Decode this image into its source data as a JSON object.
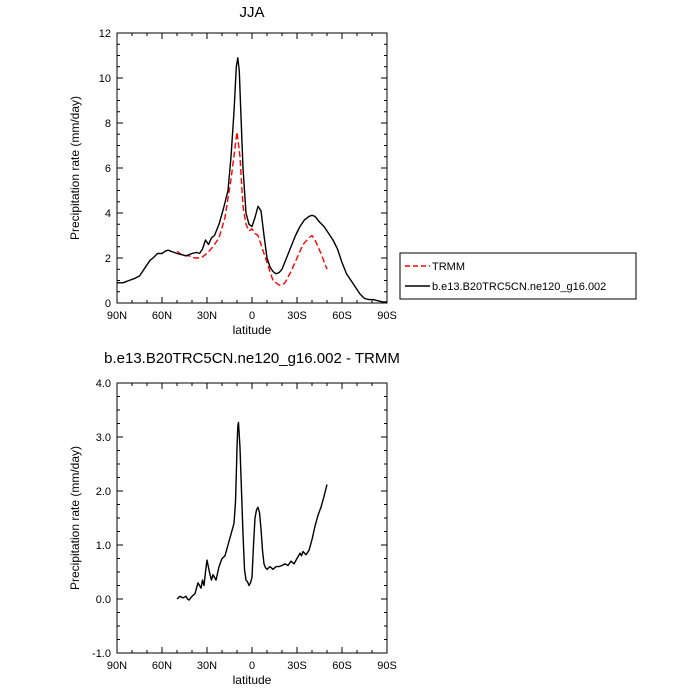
{
  "chart_data": [
    {
      "type": "line",
      "title": "JJA",
      "xlabel": "latitude",
      "ylabel": "Precipitation rate (mm/day)",
      "xlim": [
        90,
        -90
      ],
      "ylim": [
        0,
        12
      ],
      "xticks": [
        90,
        60,
        30,
        0,
        -30,
        -60,
        -90
      ],
      "xtick_labels": [
        "90N",
        "60N",
        "30N",
        "0",
        "30S",
        "60S",
        "90S"
      ],
      "yticks": [
        0,
        2,
        4,
        6,
        8,
        10,
        12
      ],
      "ytick_labels": [
        "0",
        "2",
        "4",
        "6",
        "8",
        "10",
        "12"
      ],
      "legend_position": "right",
      "series": [
        {
          "name": "TRMM",
          "color": "#ff0000",
          "style": "dashed",
          "x": [
            50,
            46,
            42,
            38,
            34,
            30,
            26,
            22,
            18,
            14,
            10,
            8,
            6,
            4,
            2,
            0,
            -2,
            -4,
            -6,
            -10,
            -14,
            -18,
            -20,
            -22,
            -26,
            -30,
            -34,
            -38,
            -40,
            -42,
            -46,
            -50
          ],
          "y": [
            2.3,
            2.1,
            2.1,
            2.0,
            2.0,
            2.2,
            2.5,
            2.9,
            3.8,
            5.5,
            7.6,
            6.5,
            4.3,
            3.5,
            3.2,
            3.3,
            3.1,
            3.0,
            2.6,
            1.8,
            1.0,
            0.8,
            0.8,
            0.9,
            1.4,
            2.0,
            2.6,
            2.9,
            3.0,
            2.8,
            2.2,
            1.5
          ]
        },
        {
          "name": "b.e13.B20TRC5CN.ne120_g16.002",
          "color": "#000000",
          "style": "solid",
          "x": [
            90,
            86,
            82,
            78,
            75,
            72,
            70,
            68,
            66,
            63,
            60,
            58,
            56,
            54,
            52,
            50,
            47,
            44,
            40,
            37,
            35,
            33,
            31,
            29,
            27,
            25,
            22,
            19,
            16,
            14,
            12,
            10.5,
            9.5,
            8.5,
            7.5,
            6,
            4,
            2,
            0,
            -2,
            -4,
            -6,
            -8,
            -10,
            -12,
            -14,
            -16,
            -18,
            -20,
            -23,
            -26,
            -29,
            -32,
            -35,
            -38,
            -40,
            -42,
            -45,
            -48,
            -51,
            -54,
            -57,
            -60,
            -63,
            -66,
            -69,
            -72,
            -75,
            -78,
            -81,
            -84,
            -87,
            -90
          ],
          "y": [
            0.9,
            0.9,
            1.0,
            1.1,
            1.2,
            1.5,
            1.7,
            1.9,
            2.0,
            2.2,
            2.2,
            2.3,
            2.35,
            2.3,
            2.25,
            2.2,
            2.15,
            2.1,
            2.2,
            2.25,
            2.2,
            2.4,
            2.8,
            2.6,
            2.9,
            3.0,
            3.5,
            4.2,
            5.0,
            6.5,
            8.5,
            10.5,
            10.9,
            10.3,
            8.5,
            6.0,
            4.0,
            3.5,
            3.4,
            3.8,
            4.3,
            4.1,
            3.0,
            2.0,
            1.6,
            1.4,
            1.3,
            1.35,
            1.5,
            2.0,
            2.5,
            3.0,
            3.4,
            3.7,
            3.85,
            3.9,
            3.85,
            3.6,
            3.4,
            3.1,
            2.8,
            2.4,
            1.8,
            1.3,
            1.0,
            0.7,
            0.4,
            0.2,
            0.15,
            0.15,
            0.1,
            0.05,
            0.05
          ]
        }
      ]
    },
    {
      "type": "line",
      "title": "b.e13.B20TRC5CN.ne120_g16.002 - TRMM",
      "xlabel": "latitude",
      "ylabel": "Precipitation rate (mm/day)",
      "xlim": [
        90,
        -90
      ],
      "ylim": [
        -1.0,
        4.0
      ],
      "xticks": [
        90,
        60,
        30,
        0,
        -30,
        -60,
        -90
      ],
      "xtick_labels": [
        "90N",
        "60N",
        "30N",
        "0",
        "30S",
        "60S",
        "90S"
      ],
      "yticks": [
        -1.0,
        0.0,
        1.0,
        2.0,
        3.0,
        4.0
      ],
      "ytick_labels": [
        "-1.0",
        "0.0",
        "1.0",
        "2.0",
        "3.0",
        "4.0"
      ],
      "series": [
        {
          "color": "#000000",
          "style": "solid",
          "x": [
            50,
            48,
            46,
            44,
            43,
            42,
            40,
            38,
            36,
            34,
            33,
            32,
            31,
            30,
            28,
            27,
            26,
            24,
            22,
            20,
            18,
            16,
            14,
            12,
            11,
            10.5,
            10,
            9.5,
            9,
            8,
            7,
            6,
            5,
            4,
            3,
            2,
            1,
            0,
            -1,
            -2,
            -3,
            -4,
            -5,
            -6,
            -7,
            -8,
            -9,
            -10,
            -12,
            -14,
            -16,
            -18,
            -20,
            -22,
            -24,
            -26,
            -28,
            -30,
            -32,
            -33,
            -34,
            -35,
            -36,
            -38,
            -40,
            -42,
            -44,
            -46,
            -48,
            -50
          ],
          "y": [
            0.0,
            0.05,
            0.02,
            0.05,
            0.0,
            -0.02,
            0.05,
            0.1,
            0.3,
            0.2,
            0.35,
            0.25,
            0.5,
            0.72,
            0.45,
            0.35,
            0.45,
            0.35,
            0.6,
            0.75,
            0.8,
            1.0,
            1.2,
            1.4,
            1.8,
            2.3,
            2.8,
            3.2,
            3.27,
            2.8,
            2.0,
            1.2,
            0.55,
            0.35,
            0.32,
            0.25,
            0.3,
            0.4,
            1.0,
            1.5,
            1.65,
            1.7,
            1.6,
            1.3,
            0.9,
            0.65,
            0.58,
            0.55,
            0.6,
            0.55,
            0.6,
            0.6,
            0.62,
            0.65,
            0.62,
            0.7,
            0.65,
            0.75,
            0.85,
            0.8,
            0.88,
            0.85,
            0.82,
            0.9,
            1.1,
            1.35,
            1.55,
            1.7,
            1.9,
            2.12
          ]
        }
      ]
    }
  ]
}
